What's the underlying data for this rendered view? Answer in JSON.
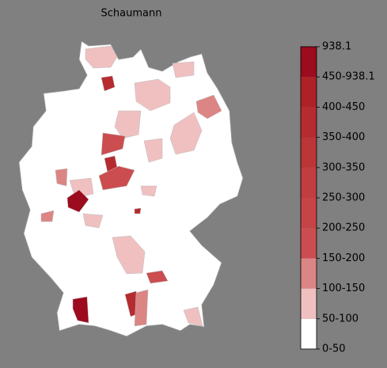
{
  "title": "Schaumann",
  "legend": {
    "labels": [
      "0-50",
      "50-100",
      "100-150",
      "150-200",
      "200-250",
      "250-300",
      "300-350",
      "350-400",
      "400-450",
      "450-938.1",
      "938.1"
    ],
    "colors": [
      "#ffffff",
      "#f0c0c0",
      "#dc8585",
      "#cb4d4f",
      "#c64446",
      "#c13d40",
      "#bc3537",
      "#b52b2f",
      "#ad2127",
      "#9d0b1e"
    ]
  }
}
